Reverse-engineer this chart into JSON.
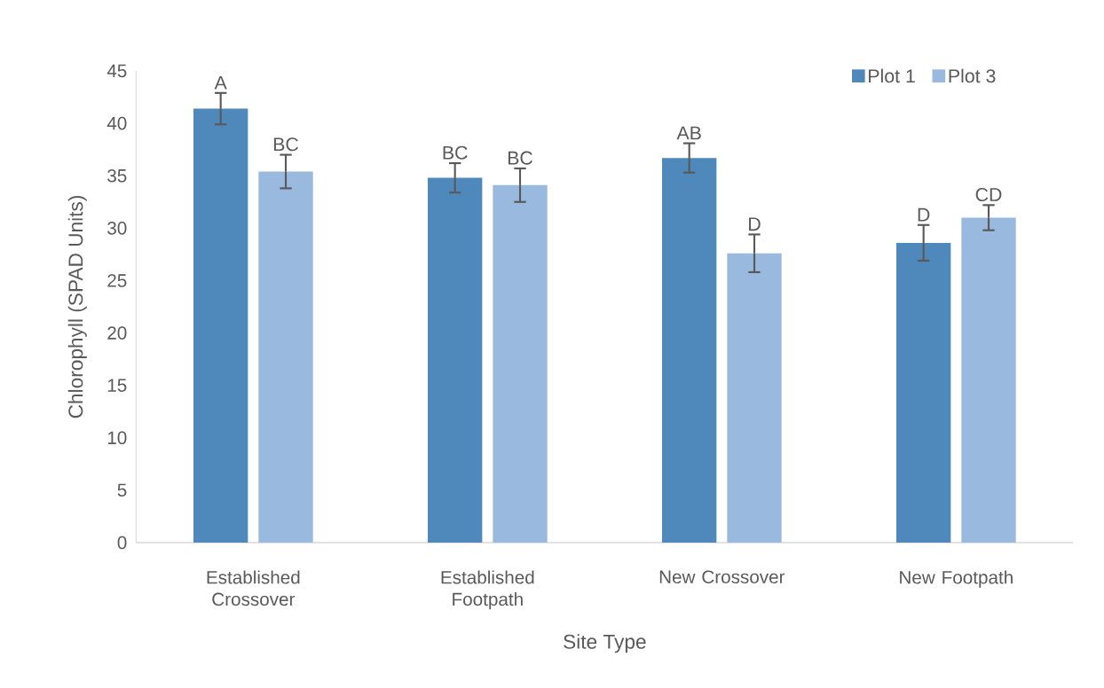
{
  "chart_data": {
    "type": "bar",
    "xlabel": "Site Type",
    "ylabel": "Chlorophyll (SPAD Units)",
    "categories": [
      "Established Crossover",
      "Established Footpath",
      "New Crossover",
      "New Footpath"
    ],
    "series": [
      {
        "name": "Plot 1",
        "color": "#4f88bb",
        "values": [
          41.4,
          34.8,
          36.7,
          28.6
        ],
        "errors": [
          1.5,
          1.4,
          1.4,
          1.7
        ]
      },
      {
        "name": "Plot 3",
        "color": "#99b9df",
        "values": [
          35.4,
          34.1,
          27.6,
          31.0
        ],
        "errors": [
          1.6,
          1.6,
          1.8,
          1.2
        ]
      }
    ],
    "annotations": [
      "A",
      "BC",
      "BC",
      "BC",
      "AB",
      "D",
      "D",
      "CD"
    ],
    "ylim": [
      0,
      45
    ],
    "yticks": [
      0,
      5,
      10,
      15,
      20,
      25,
      30,
      35,
      40,
      45
    ],
    "grid": false,
    "legend": "top right"
  }
}
